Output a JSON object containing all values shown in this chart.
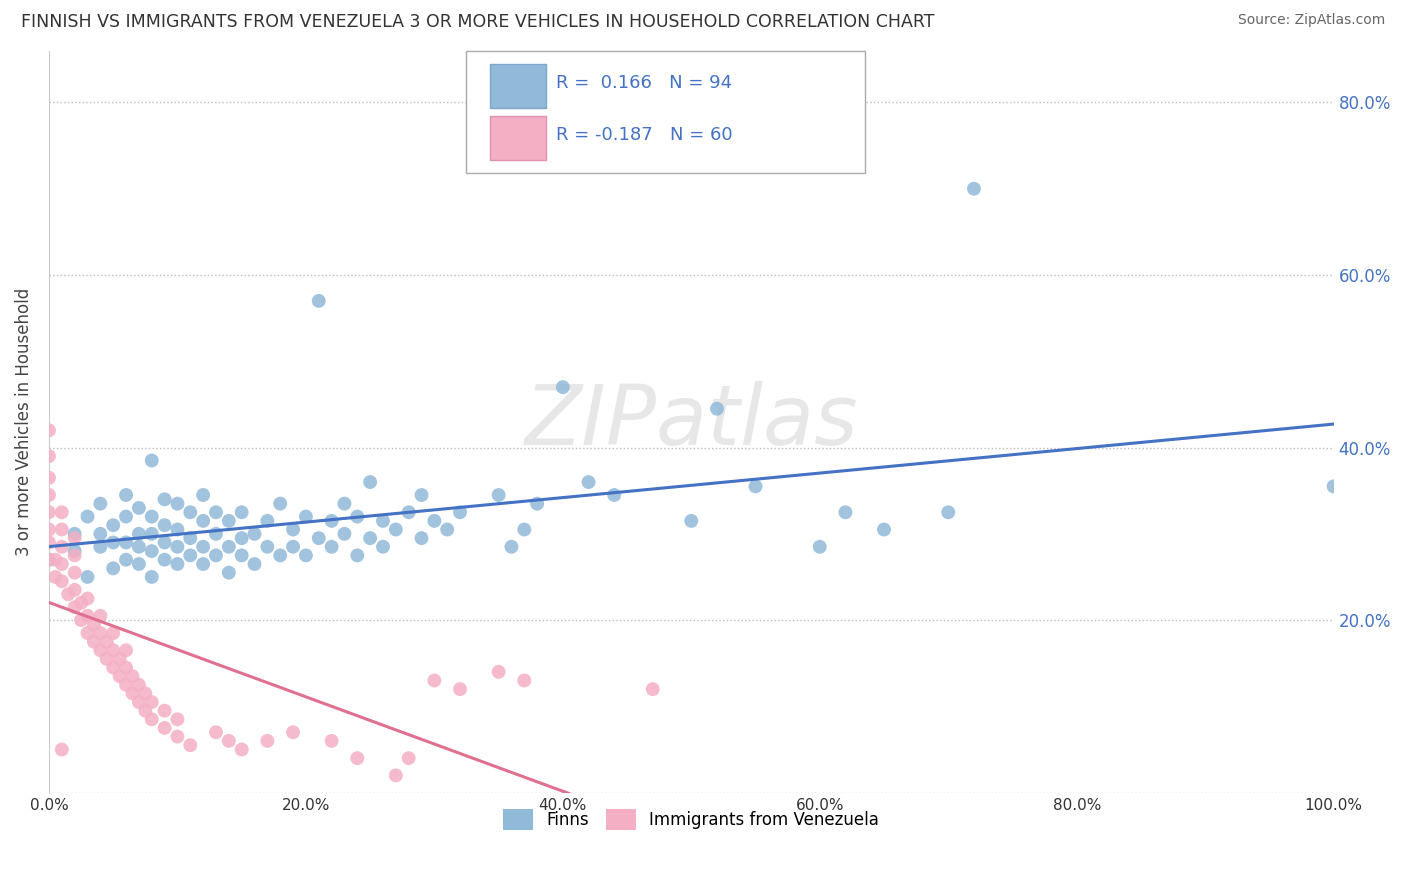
{
  "title": "FINNISH VS IMMIGRANTS FROM VENEZUELA 3 OR MORE VEHICLES IN HOUSEHOLD CORRELATION CHART",
  "source": "Source: ZipAtlas.com",
  "ylabel": "3 or more Vehicles in Household",
  "xlim": [
    0.0,
    1.0
  ],
  "ylim": [
    0.0,
    0.86
  ],
  "xticks": [
    0.0,
    0.2,
    0.4,
    0.6,
    0.8,
    1.0
  ],
  "xtick_labels": [
    "0.0%",
    "20.0%",
    "40.0%",
    "60.0%",
    "80.0%",
    "100.0%"
  ],
  "yticks": [
    0.0,
    0.2,
    0.4,
    0.6,
    0.8
  ],
  "ytick_labels": [
    "",
    "20.0%",
    "40.0%",
    "60.0%",
    "80.0%"
  ],
  "finns_color": "#91b9d8",
  "venezuela_color": "#f4afc4",
  "finn_line_color": "#4472c4",
  "venezuela_line_color": "#e07090",
  "watermark_text": "ZIPatlas",
  "watermark_color": "#d8d8d8",
  "finns_scatter": [
    [
      0.0,
      0.27
    ],
    [
      0.02,
      0.28
    ],
    [
      0.02,
      0.3
    ],
    [
      0.03,
      0.25
    ],
    [
      0.03,
      0.32
    ],
    [
      0.04,
      0.285
    ],
    [
      0.04,
      0.3
    ],
    [
      0.04,
      0.335
    ],
    [
      0.05,
      0.26
    ],
    [
      0.05,
      0.29
    ],
    [
      0.05,
      0.31
    ],
    [
      0.06,
      0.27
    ],
    [
      0.06,
      0.29
    ],
    [
      0.06,
      0.32
    ],
    [
      0.06,
      0.345
    ],
    [
      0.07,
      0.265
    ],
    [
      0.07,
      0.285
    ],
    [
      0.07,
      0.3
    ],
    [
      0.07,
      0.33
    ],
    [
      0.08,
      0.25
    ],
    [
      0.08,
      0.28
    ],
    [
      0.08,
      0.3
    ],
    [
      0.08,
      0.32
    ],
    [
      0.08,
      0.385
    ],
    [
      0.09,
      0.27
    ],
    [
      0.09,
      0.29
    ],
    [
      0.09,
      0.31
    ],
    [
      0.09,
      0.34
    ],
    [
      0.1,
      0.265
    ],
    [
      0.1,
      0.285
    ],
    [
      0.1,
      0.305
    ],
    [
      0.1,
      0.335
    ],
    [
      0.11,
      0.275
    ],
    [
      0.11,
      0.295
    ],
    [
      0.11,
      0.325
    ],
    [
      0.12,
      0.265
    ],
    [
      0.12,
      0.285
    ],
    [
      0.12,
      0.315
    ],
    [
      0.12,
      0.345
    ],
    [
      0.13,
      0.275
    ],
    [
      0.13,
      0.3
    ],
    [
      0.13,
      0.325
    ],
    [
      0.14,
      0.255
    ],
    [
      0.14,
      0.285
    ],
    [
      0.14,
      0.315
    ],
    [
      0.15,
      0.275
    ],
    [
      0.15,
      0.295
    ],
    [
      0.15,
      0.325
    ],
    [
      0.16,
      0.265
    ],
    [
      0.16,
      0.3
    ],
    [
      0.17,
      0.285
    ],
    [
      0.17,
      0.315
    ],
    [
      0.18,
      0.275
    ],
    [
      0.18,
      0.335
    ],
    [
      0.19,
      0.285
    ],
    [
      0.19,
      0.305
    ],
    [
      0.2,
      0.275
    ],
    [
      0.2,
      0.32
    ],
    [
      0.21,
      0.295
    ],
    [
      0.21,
      0.57
    ],
    [
      0.22,
      0.285
    ],
    [
      0.22,
      0.315
    ],
    [
      0.23,
      0.3
    ],
    [
      0.23,
      0.335
    ],
    [
      0.24,
      0.275
    ],
    [
      0.24,
      0.32
    ],
    [
      0.25,
      0.295
    ],
    [
      0.25,
      0.36
    ],
    [
      0.26,
      0.285
    ],
    [
      0.26,
      0.315
    ],
    [
      0.27,
      0.305
    ],
    [
      0.28,
      0.325
    ],
    [
      0.29,
      0.295
    ],
    [
      0.29,
      0.345
    ],
    [
      0.3,
      0.315
    ],
    [
      0.31,
      0.305
    ],
    [
      0.32,
      0.325
    ],
    [
      0.35,
      0.345
    ],
    [
      0.36,
      0.285
    ],
    [
      0.37,
      0.305
    ],
    [
      0.38,
      0.335
    ],
    [
      0.4,
      0.47
    ],
    [
      0.42,
      0.36
    ],
    [
      0.44,
      0.345
    ],
    [
      0.5,
      0.315
    ],
    [
      0.52,
      0.445
    ],
    [
      0.55,
      0.355
    ],
    [
      0.6,
      0.285
    ],
    [
      0.62,
      0.325
    ],
    [
      0.65,
      0.305
    ],
    [
      0.7,
      0.325
    ],
    [
      0.72,
      0.7
    ],
    [
      1.0,
      0.355
    ]
  ],
  "venezuela_scatter": [
    [
      0.0,
      0.27
    ],
    [
      0.0,
      0.29
    ],
    [
      0.0,
      0.305
    ],
    [
      0.0,
      0.325
    ],
    [
      0.0,
      0.345
    ],
    [
      0.0,
      0.365
    ],
    [
      0.0,
      0.39
    ],
    [
      0.0,
      0.42
    ],
    [
      0.005,
      0.25
    ],
    [
      0.005,
      0.27
    ],
    [
      0.01,
      0.245
    ],
    [
      0.01,
      0.265
    ],
    [
      0.01,
      0.285
    ],
    [
      0.01,
      0.305
    ],
    [
      0.01,
      0.325
    ],
    [
      0.01,
      0.05
    ],
    [
      0.015,
      0.23
    ],
    [
      0.02,
      0.215
    ],
    [
      0.02,
      0.235
    ],
    [
      0.02,
      0.255
    ],
    [
      0.02,
      0.275
    ],
    [
      0.02,
      0.295
    ],
    [
      0.025,
      0.2
    ],
    [
      0.025,
      0.22
    ],
    [
      0.03,
      0.185
    ],
    [
      0.03,
      0.205
    ],
    [
      0.03,
      0.225
    ],
    [
      0.035,
      0.175
    ],
    [
      0.035,
      0.195
    ],
    [
      0.04,
      0.165
    ],
    [
      0.04,
      0.185
    ],
    [
      0.04,
      0.205
    ],
    [
      0.045,
      0.155
    ],
    [
      0.045,
      0.175
    ],
    [
      0.05,
      0.145
    ],
    [
      0.05,
      0.165
    ],
    [
      0.05,
      0.185
    ],
    [
      0.055,
      0.135
    ],
    [
      0.055,
      0.155
    ],
    [
      0.06,
      0.125
    ],
    [
      0.06,
      0.145
    ],
    [
      0.06,
      0.165
    ],
    [
      0.065,
      0.115
    ],
    [
      0.065,
      0.135
    ],
    [
      0.07,
      0.105
    ],
    [
      0.07,
      0.125
    ],
    [
      0.075,
      0.095
    ],
    [
      0.075,
      0.115
    ],
    [
      0.08,
      0.085
    ],
    [
      0.08,
      0.105
    ],
    [
      0.09,
      0.075
    ],
    [
      0.09,
      0.095
    ],
    [
      0.1,
      0.065
    ],
    [
      0.1,
      0.085
    ],
    [
      0.11,
      0.055
    ],
    [
      0.13,
      0.07
    ],
    [
      0.14,
      0.06
    ],
    [
      0.15,
      0.05
    ],
    [
      0.17,
      0.06
    ],
    [
      0.19,
      0.07
    ],
    [
      0.22,
      0.06
    ],
    [
      0.24,
      0.04
    ],
    [
      0.27,
      0.02
    ],
    [
      0.28,
      0.04
    ],
    [
      0.3,
      0.13
    ],
    [
      0.32,
      0.12
    ],
    [
      0.35,
      0.14
    ],
    [
      0.37,
      0.13
    ],
    [
      0.47,
      0.12
    ]
  ]
}
